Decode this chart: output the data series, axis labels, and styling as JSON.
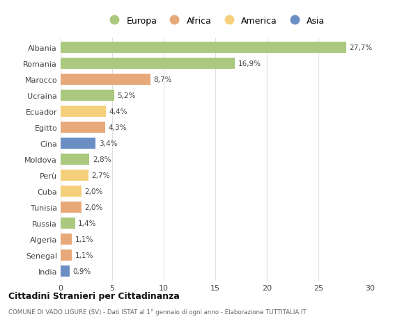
{
  "countries": [
    "Albania",
    "Romania",
    "Marocco",
    "Ucraina",
    "Ecuador",
    "Egitto",
    "Cina",
    "Moldova",
    "Perù",
    "Cuba",
    "Tunisia",
    "Russia",
    "Algeria",
    "Senegal",
    "India"
  ],
  "values": [
    27.7,
    16.9,
    8.7,
    5.2,
    4.4,
    4.3,
    3.4,
    2.8,
    2.7,
    2.0,
    2.0,
    1.4,
    1.1,
    1.1,
    0.9
  ],
  "labels": [
    "27,7%",
    "16,9%",
    "8,7%",
    "5,2%",
    "4,4%",
    "4,3%",
    "3,4%",
    "2,8%",
    "2,7%",
    "2,0%",
    "2,0%",
    "1,4%",
    "1,1%",
    "1,1%",
    "0,9%"
  ],
  "continents": [
    "Europa",
    "Europa",
    "Africa",
    "Europa",
    "America",
    "Africa",
    "Asia",
    "Europa",
    "America",
    "America",
    "Africa",
    "Europa",
    "Africa",
    "Africa",
    "Asia"
  ],
  "colors": {
    "Europa": "#aac97f",
    "Africa": "#e8a97a",
    "America": "#f5d07a",
    "Asia": "#6b8fc4"
  },
  "legend_order": [
    "Europa",
    "Africa",
    "America",
    "Asia"
  ],
  "title_bold": "Cittadini Stranieri per Cittadinanza",
  "subtitle": "COMUNE DI VADO LIGURE (SV) - Dati ISTAT al 1° gennaio di ogni anno - Elaborazione TUTTITALIA.IT",
  "xlim": [
    0,
    30
  ],
  "xticks": [
    0,
    5,
    10,
    15,
    20,
    25,
    30
  ],
  "background_color": "#ffffff",
  "grid_color": "#e0e0e0",
  "bar_height": 0.72
}
